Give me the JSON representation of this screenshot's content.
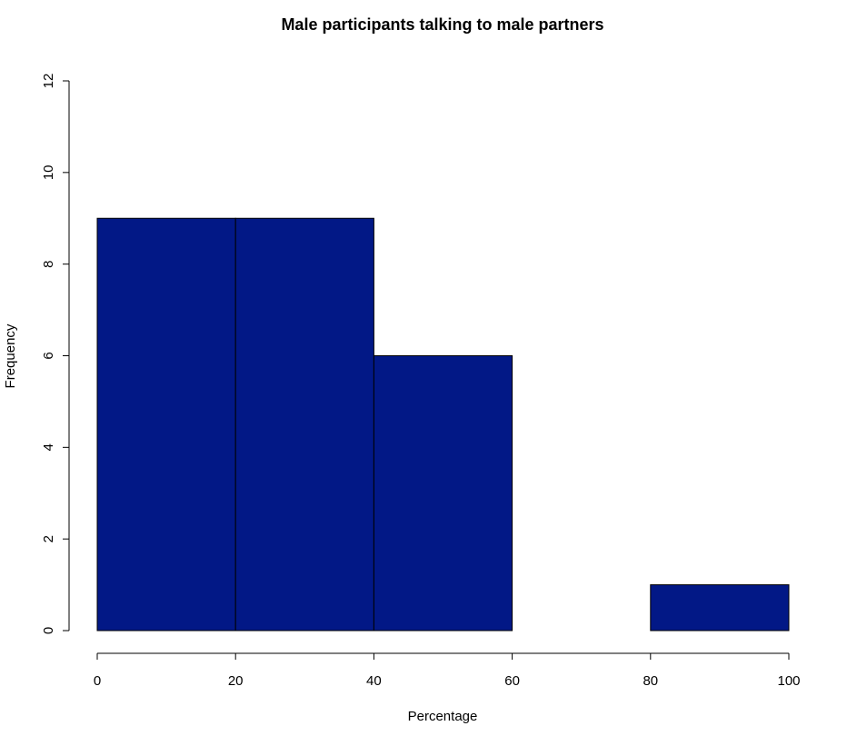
{
  "chart_data": {
    "type": "bar",
    "subtype": "histogram",
    "title": "Male participants talking to male partners",
    "xlabel": "Percentage",
    "ylabel": "Frequency",
    "bins": [
      {
        "from": 0,
        "to": 20,
        "count": 9
      },
      {
        "from": 20,
        "to": 40,
        "count": 9
      },
      {
        "from": 40,
        "to": 60,
        "count": 6
      },
      {
        "from": 60,
        "to": 80,
        "count": 0
      },
      {
        "from": 80,
        "to": 100,
        "count": 1
      }
    ],
    "xlim": [
      0,
      100
    ],
    "ylim": [
      0,
      12
    ],
    "xticks": [
      0,
      20,
      40,
      60,
      80,
      100
    ],
    "yticks": [
      0,
      2,
      4,
      6,
      8,
      10,
      12
    ],
    "grid": false,
    "legend": "none",
    "bar_color": "#021886",
    "edge_color": "#000000"
  }
}
